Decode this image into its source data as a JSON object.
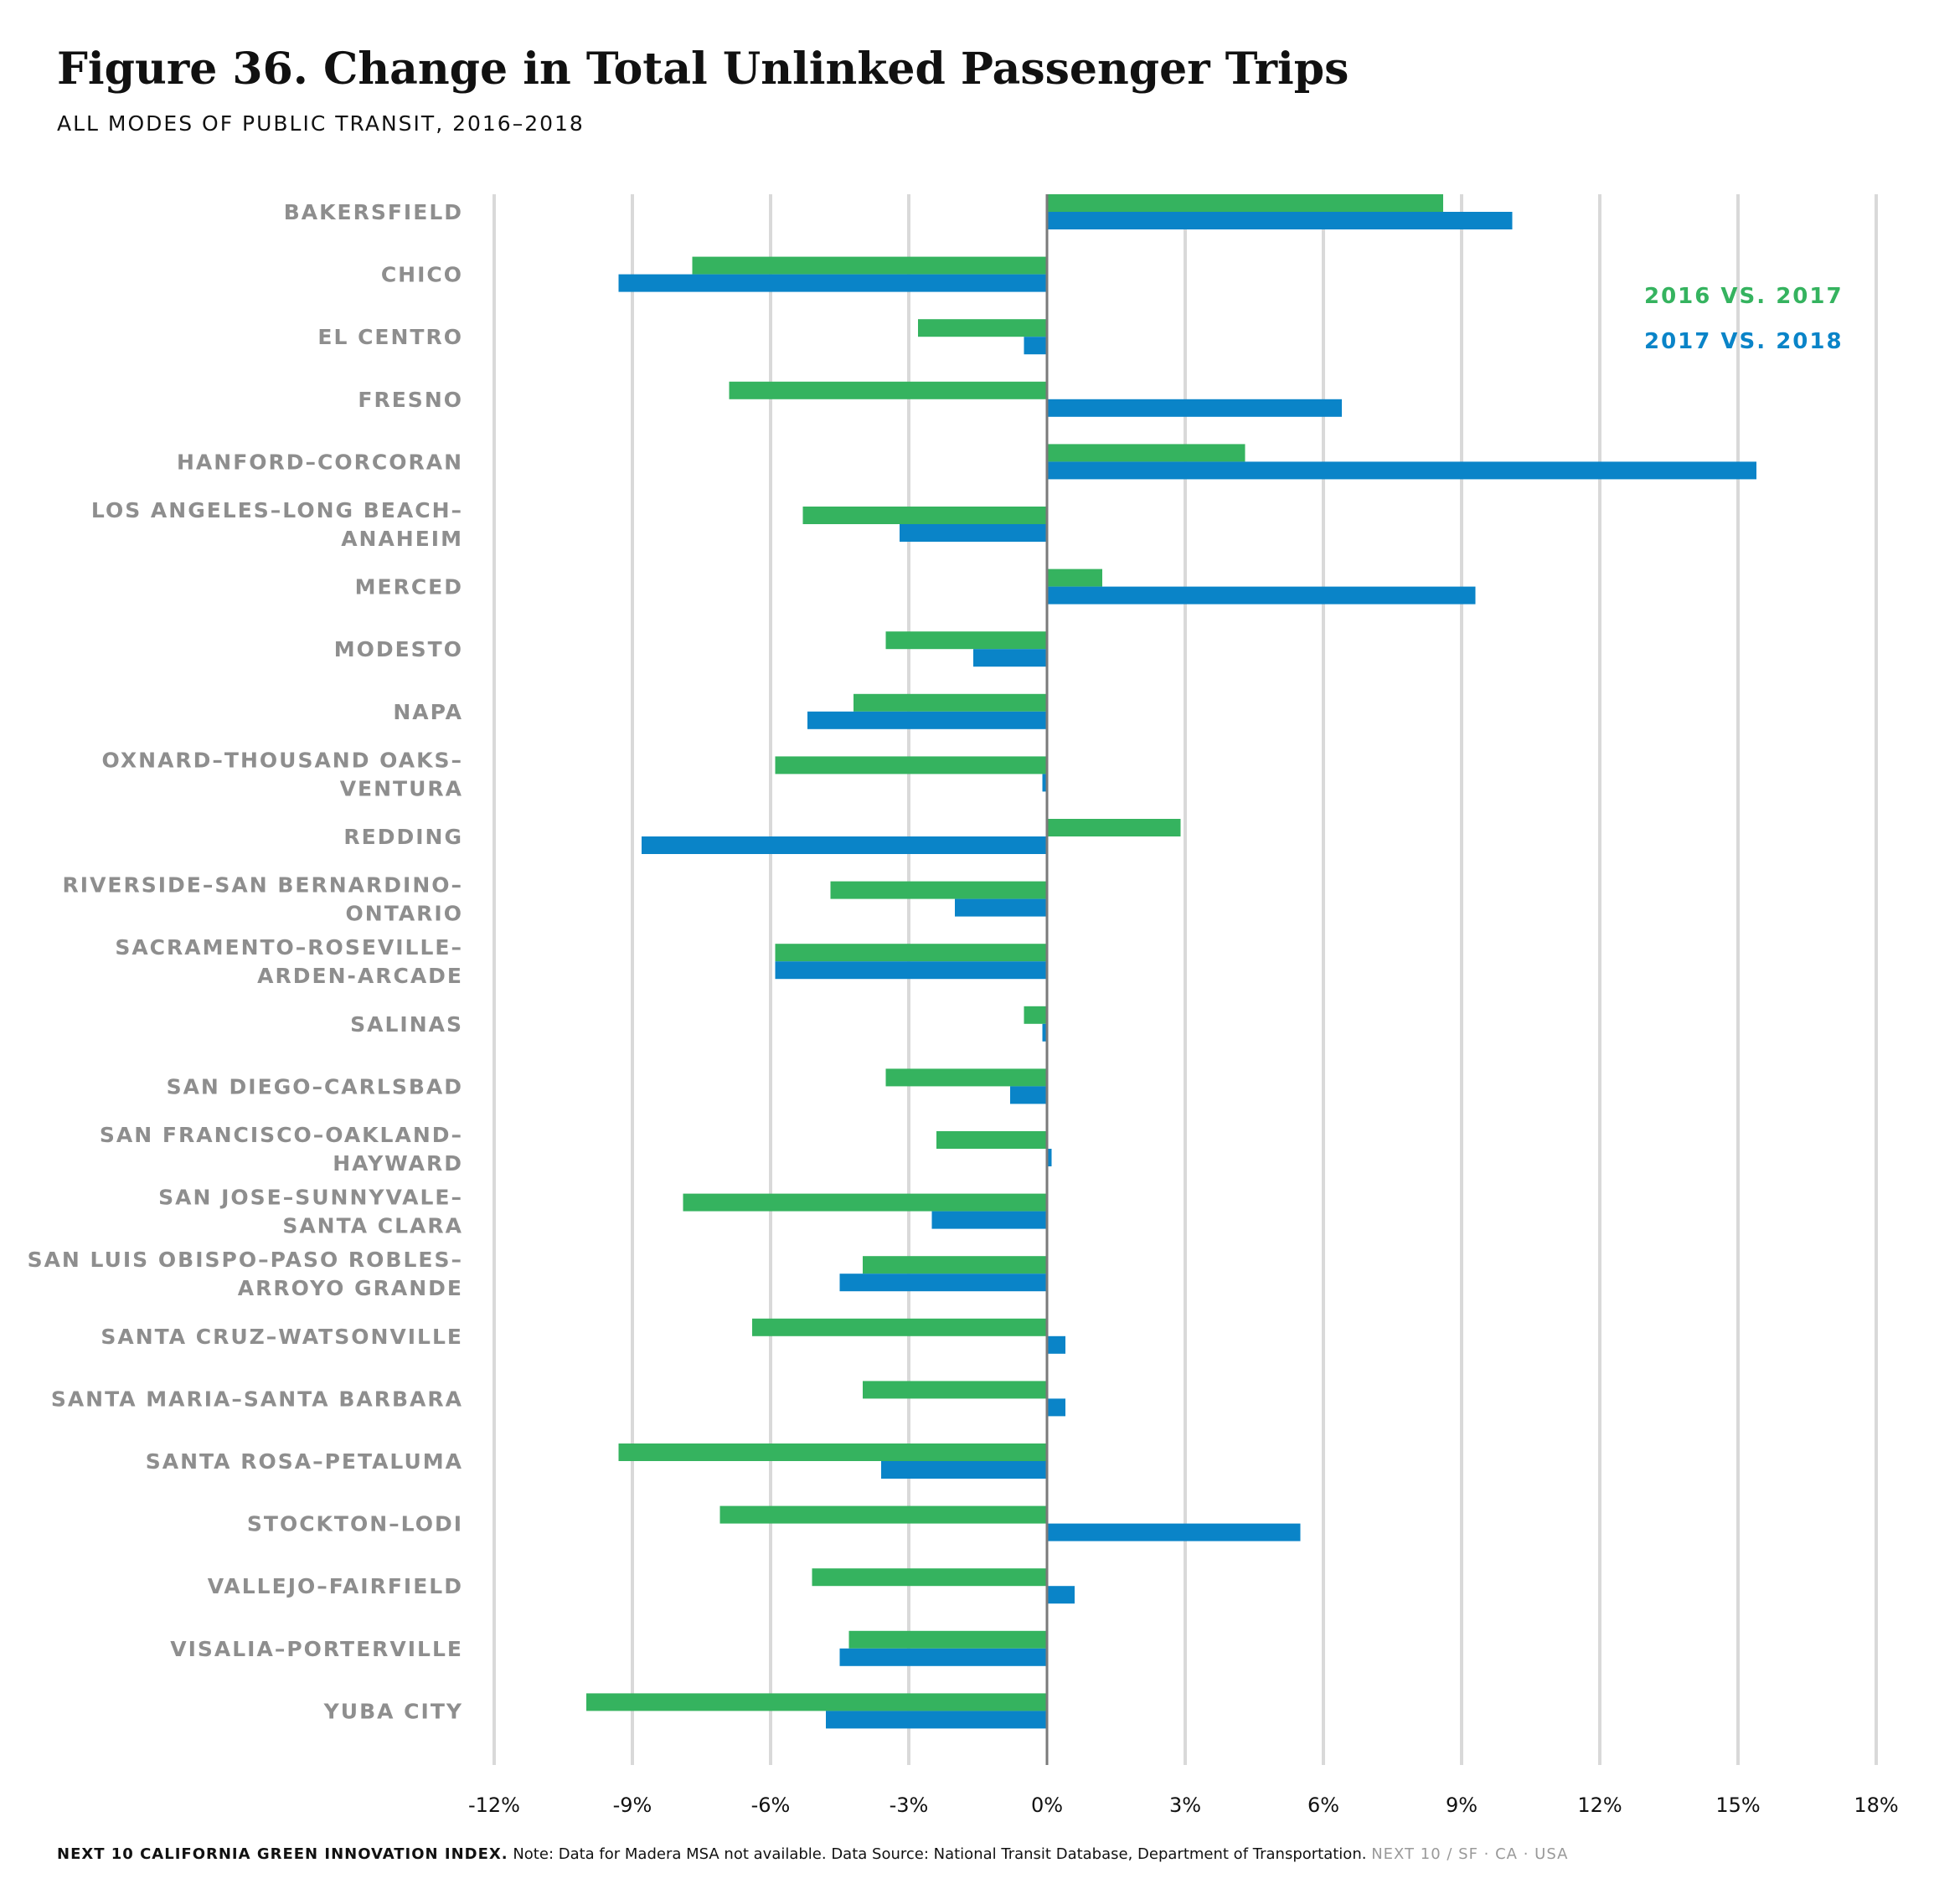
{
  "header": {
    "title": "Figure 36. Change in Total Unlinked Passenger Trips",
    "subtitle": "ALL MODES OF PUBLIC TRANSIT, 2016–2018"
  },
  "footer": {
    "brand": "NEXT 10 CALIFORNIA GREEN INNOVATION INDEX.",
    "note": "Note: Data for Madera MSA not available. Data Source: National Transit Database, Department of Transportation.",
    "tag": "NEXT 10 / SF · CA · USA"
  },
  "chart_data": {
    "type": "bar",
    "orientation": "horizontal",
    "title": "Figure 36. Change in Total Unlinked Passenger Trips",
    "subtitle": "ALL MODES OF PUBLIC TRANSIT, 2016–2018",
    "xlim": [
      -12,
      18
    ],
    "xticks": [
      -12,
      -9,
      -6,
      -3,
      0,
      3,
      6,
      9,
      12,
      15,
      18
    ],
    "xtick_labels": [
      "-12%",
      "-9%",
      "-6%",
      "-3%",
      "0%",
      "3%",
      "6%",
      "9%",
      "12%",
      "15%",
      "18%"
    ],
    "grid": true,
    "legend": "top-right",
    "categories": [
      [
        "BAKERSFIELD"
      ],
      [
        "CHICO"
      ],
      [
        "EL CENTRO"
      ],
      [
        "FRESNO"
      ],
      [
        "HANFORD–CORCORAN"
      ],
      [
        "LOS ANGELES–LONG BEACH–",
        "ANAHEIM"
      ],
      [
        "MERCED"
      ],
      [
        "MODESTO"
      ],
      [
        "NAPA"
      ],
      [
        "OXNARD–THOUSAND OAKS–",
        "VENTURA"
      ],
      [
        "REDDING"
      ],
      [
        "RIVERSIDE–SAN BERNARDINO–",
        "ONTARIO"
      ],
      [
        "SACRAMENTO–ROSEVILLE–",
        "ARDEN-ARCADE"
      ],
      [
        "SALINAS"
      ],
      [
        "SAN DIEGO–CARLSBAD"
      ],
      [
        "SAN FRANCISCO–OAKLAND–",
        "HAYWARD"
      ],
      [
        "SAN JOSE–SUNNYVALE–",
        "SANTA CLARA"
      ],
      [
        "SAN LUIS OBISPO–PASO ROBLES–",
        "ARROYO GRANDE"
      ],
      [
        "SANTA CRUZ–WATSONVILLE"
      ],
      [
        "SANTA MARIA–SANTA BARBARA"
      ],
      [
        "SANTA ROSA–PETALUMA"
      ],
      [
        "STOCKTON–LODI"
      ],
      [
        "VALLEJO–FAIRFIELD"
      ],
      [
        "VISALIA–PORTERVILLE"
      ],
      [
        "YUBA CITY"
      ]
    ],
    "series": [
      {
        "name": "2016 VS. 2017",
        "color": "#35b35f",
        "values": [
          8.6,
          -7.7,
          -2.8,
          -6.9,
          4.3,
          -5.3,
          1.2,
          -3.5,
          -4.2,
          -5.9,
          2.9,
          -4.7,
          -5.9,
          -0.5,
          -3.5,
          -2.4,
          -7.9,
          -4.0,
          -6.4,
          -4.0,
          -9.3,
          -7.1,
          -5.1,
          -4.3,
          -10.0
        ]
      },
      {
        "name": "2017 VS. 2018",
        "color": "#0a84c8",
        "values": [
          10.1,
          -9.3,
          -0.5,
          6.4,
          15.4,
          -3.2,
          9.3,
          -1.6,
          -5.2,
          -0.1,
          -8.8,
          -2.0,
          -5.9,
          -0.1,
          -0.8,
          0.1,
          -2.5,
          -4.5,
          0.4,
          0.4,
          -3.6,
          5.5,
          0.6,
          -4.5,
          -4.8
        ]
      }
    ]
  }
}
